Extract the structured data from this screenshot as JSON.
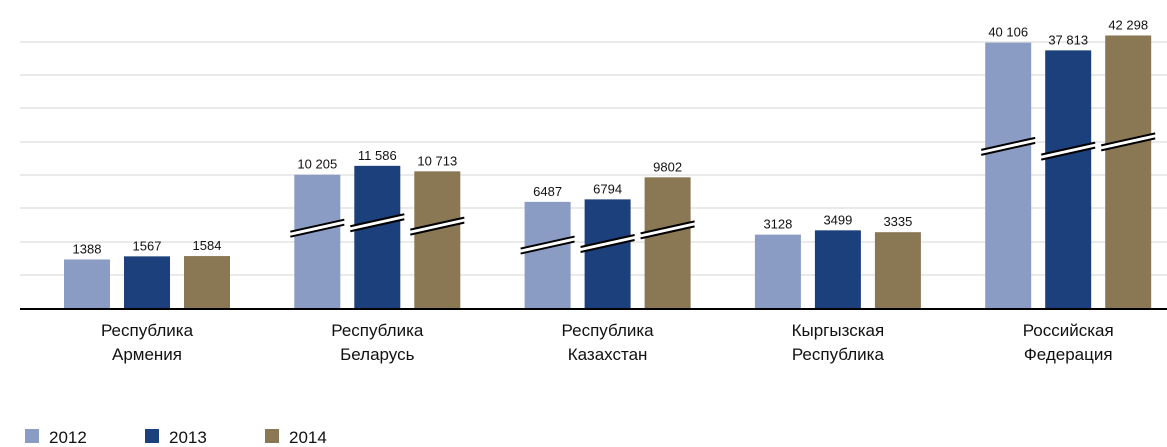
{
  "chart_data": {
    "type": "bar",
    "categories": [
      [
        "Республика",
        "Армения"
      ],
      [
        "Республика",
        "Беларусь"
      ],
      [
        "Республика",
        "Казахстан"
      ],
      [
        "Кыргызская",
        "Республика"
      ],
      [
        "Российская",
        "Федерация"
      ]
    ],
    "series": [
      {
        "name": "2012",
        "color": "#8a9cc4",
        "values": [
          1388,
          10205,
          6487,
          3128,
          40106
        ],
        "value_labels": [
          "1388",
          "10 205",
          "6487",
          "3128",
          "40 106"
        ]
      },
      {
        "name": "2013",
        "color": "#1c407b",
        "values": [
          1567,
          11586,
          6794,
          3499,
          37813
        ],
        "value_labels": [
          "1567",
          "11 586",
          "6794",
          "3499",
          "37 813"
        ]
      },
      {
        "name": "2014",
        "color": "#8a7753",
        "values": [
          1584,
          10713,
          9802,
          3335,
          42298
        ],
        "value_labels": [
          "1584",
          "10 713",
          "9802",
          "3335",
          "42 298"
        ]
      }
    ]
  }
}
